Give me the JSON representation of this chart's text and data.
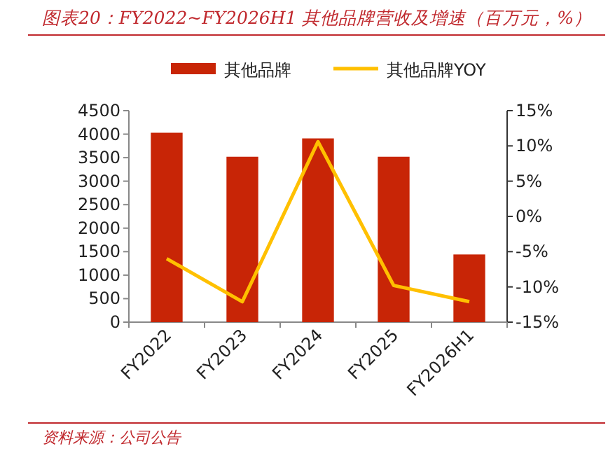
{
  "chart_data": {
    "type": "bar",
    "title": "图表20：FY2022~FY2026H1 其他品牌营收及增速（百万元，%）",
    "categories": [
      "FY2022",
      "FY2023",
      "FY2024",
      "FY2025",
      "FY2026H1"
    ],
    "series": [
      {
        "name": "其他品牌",
        "color": "#c82506",
        "values": [
          4030,
          3520,
          3910,
          3520,
          1440
        ]
      },
      {
        "name": "其他品牌YOY",
        "type": "line",
        "axis": "y2",
        "color": "#ffc000",
        "values": [
          -6.0,
          -12.1,
          10.6,
          -9.8,
          -12.1
        ]
      }
    ],
    "ylim": [
      0,
      4500
    ],
    "yticks": [
      0,
      500,
      1000,
      1500,
      2000,
      2500,
      3000,
      3500,
      4000,
      4500
    ],
    "y2lim": [
      -15,
      15
    ],
    "y2ticks": [
      {
        "value": -15,
        "label": "-15%"
      },
      {
        "value": -10,
        "label": "-10%"
      },
      {
        "value": -5,
        "label": "-5%"
      },
      {
        "value": 0,
        "label": "0%"
      },
      {
        "value": 5,
        "label": "5%"
      },
      {
        "value": 10,
        "label": "10%"
      },
      {
        "value": 15,
        "label": "15%"
      }
    ],
    "legend": "top",
    "grid": false,
    "marker": "none",
    "line_style": "solid",
    "annotations": [
      "资料来源：公司公告"
    ]
  }
}
